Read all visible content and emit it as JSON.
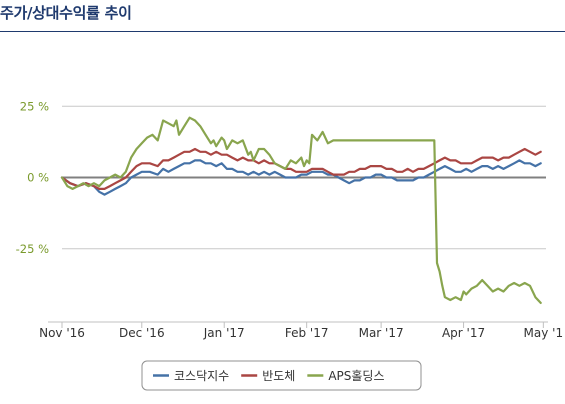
{
  "title": "주가/상대수익률 추이",
  "chart_data": {
    "type": "line",
    "title": "주가/상대수익률 추이",
    "xlabel": "",
    "ylabel": "",
    "ylim": [
      -50,
      30
    ],
    "y_ticks": [
      {
        "value": 25,
        "label": "25 %"
      },
      {
        "value": 0,
        "label": "0 %"
      },
      {
        "value": -25,
        "label": "-25 %"
      }
    ],
    "x_ticks": [
      "Nov '16",
      "Dec '16",
      "Jan '17",
      "Feb '17",
      "Mar '17",
      "Apr '17",
      "May '1"
    ],
    "x_tick_positions": [
      0,
      30,
      61,
      92,
      120,
      151,
      181
    ],
    "x_range": [
      0,
      182
    ],
    "grid": true,
    "legend_position": "bottom",
    "series": [
      {
        "name": "코스닥지수",
        "color": "#4572a7",
        "points": [
          [
            0,
            0
          ],
          [
            3,
            -2
          ],
          [
            6,
            -3
          ],
          [
            9,
            -2
          ],
          [
            12,
            -3
          ],
          [
            14,
            -5
          ],
          [
            16,
            -6
          ],
          [
            18,
            -5
          ],
          [
            20,
            -4
          ],
          [
            22,
            -3
          ],
          [
            24,
            -2
          ],
          [
            26,
            0
          ],
          [
            28,
            1
          ],
          [
            30,
            2
          ],
          [
            33,
            2
          ],
          [
            36,
            1
          ],
          [
            38,
            3
          ],
          [
            40,
            2
          ],
          [
            42,
            3
          ],
          [
            44,
            4
          ],
          [
            46,
            5
          ],
          [
            48,
            5
          ],
          [
            50,
            6
          ],
          [
            52,
            6
          ],
          [
            54,
            5
          ],
          [
            56,
            5
          ],
          [
            58,
            4
          ],
          [
            60,
            5
          ],
          [
            62,
            3
          ],
          [
            64,
            3
          ],
          [
            66,
            2
          ],
          [
            68,
            2
          ],
          [
            70,
            1
          ],
          [
            72,
            2
          ],
          [
            74,
            1
          ],
          [
            76,
            2
          ],
          [
            78,
            1
          ],
          [
            80,
            2
          ],
          [
            82,
            1
          ],
          [
            84,
            0
          ],
          [
            86,
            0
          ],
          [
            88,
            0
          ],
          [
            90,
            1
          ],
          [
            92,
            1
          ],
          [
            94,
            2
          ],
          [
            96,
            2
          ],
          [
            98,
            2
          ],
          [
            100,
            1
          ],
          [
            102,
            1
          ],
          [
            104,
            0
          ],
          [
            106,
            -1
          ],
          [
            108,
            -2
          ],
          [
            110,
            -1
          ],
          [
            112,
            -1
          ],
          [
            114,
            0
          ],
          [
            116,
            0
          ],
          [
            118,
            1
          ],
          [
            120,
            1
          ],
          [
            122,
            0
          ],
          [
            124,
            0
          ],
          [
            126,
            -1
          ],
          [
            128,
            -1
          ],
          [
            130,
            -1
          ],
          [
            132,
            -1
          ],
          [
            134,
            0
          ],
          [
            136,
            0
          ],
          [
            138,
            1
          ],
          [
            140,
            2
          ],
          [
            142,
            3
          ],
          [
            144,
            4
          ],
          [
            146,
            3
          ],
          [
            148,
            2
          ],
          [
            150,
            2
          ],
          [
            152,
            3
          ],
          [
            154,
            2
          ],
          [
            156,
            3
          ],
          [
            158,
            4
          ],
          [
            160,
            4
          ],
          [
            162,
            3
          ],
          [
            164,
            4
          ],
          [
            166,
            3
          ],
          [
            168,
            4
          ],
          [
            170,
            5
          ],
          [
            172,
            6
          ],
          [
            174,
            5
          ],
          [
            176,
            5
          ],
          [
            178,
            4
          ],
          [
            180,
            5
          ]
        ]
      },
      {
        "name": "반도체",
        "color": "#aa4643",
        "points": [
          [
            0,
            0
          ],
          [
            3,
            -2
          ],
          [
            6,
            -3
          ],
          [
            9,
            -2
          ],
          [
            12,
            -3
          ],
          [
            14,
            -4
          ],
          [
            16,
            -4
          ],
          [
            18,
            -3
          ],
          [
            20,
            -2
          ],
          [
            22,
            -1
          ],
          [
            24,
            0
          ],
          [
            26,
            2
          ],
          [
            28,
            4
          ],
          [
            30,
            5
          ],
          [
            33,
            5
          ],
          [
            36,
            4
          ],
          [
            38,
            6
          ],
          [
            40,
            6
          ],
          [
            42,
            7
          ],
          [
            44,
            8
          ],
          [
            46,
            9
          ],
          [
            48,
            9
          ],
          [
            50,
            10
          ],
          [
            52,
            9
          ],
          [
            54,
            9
          ],
          [
            56,
            8
          ],
          [
            58,
            9
          ],
          [
            60,
            8
          ],
          [
            62,
            8
          ],
          [
            64,
            7
          ],
          [
            66,
            6
          ],
          [
            68,
            7
          ],
          [
            70,
            6
          ],
          [
            72,
            6
          ],
          [
            74,
            5
          ],
          [
            76,
            6
          ],
          [
            78,
            5
          ],
          [
            80,
            5
          ],
          [
            82,
            4
          ],
          [
            84,
            3
          ],
          [
            86,
            3
          ],
          [
            88,
            2
          ],
          [
            90,
            2
          ],
          [
            92,
            2
          ],
          [
            94,
            3
          ],
          [
            96,
            3
          ],
          [
            98,
            3
          ],
          [
            100,
            2
          ],
          [
            102,
            1
          ],
          [
            104,
            1
          ],
          [
            106,
            1
          ],
          [
            108,
            2
          ],
          [
            110,
            2
          ],
          [
            112,
            3
          ],
          [
            114,
            3
          ],
          [
            116,
            4
          ],
          [
            118,
            4
          ],
          [
            120,
            4
          ],
          [
            122,
            3
          ],
          [
            124,
            3
          ],
          [
            126,
            2
          ],
          [
            128,
            2
          ],
          [
            130,
            3
          ],
          [
            132,
            2
          ],
          [
            134,
            3
          ],
          [
            136,
            3
          ],
          [
            138,
            4
          ],
          [
            140,
            5
          ],
          [
            142,
            6
          ],
          [
            144,
            7
          ],
          [
            146,
            6
          ],
          [
            148,
            6
          ],
          [
            150,
            5
          ],
          [
            152,
            5
          ],
          [
            154,
            5
          ],
          [
            156,
            6
          ],
          [
            158,
            7
          ],
          [
            160,
            7
          ],
          [
            162,
            7
          ],
          [
            164,
            6
          ],
          [
            166,
            7
          ],
          [
            168,
            7
          ],
          [
            170,
            8
          ],
          [
            172,
            9
          ],
          [
            174,
            10
          ],
          [
            176,
            9
          ],
          [
            178,
            8
          ],
          [
            180,
            9
          ]
        ]
      },
      {
        "name": "APS홀딩스",
        "color": "#89a54e",
        "points": [
          [
            0,
            0
          ],
          [
            2,
            -3
          ],
          [
            4,
            -4
          ],
          [
            6,
            -3
          ],
          [
            8,
            -2
          ],
          [
            10,
            -3
          ],
          [
            12,
            -2
          ],
          [
            14,
            -3
          ],
          [
            16,
            -1
          ],
          [
            18,
            0
          ],
          [
            20,
            1
          ],
          [
            22,
            0
          ],
          [
            24,
            2
          ],
          [
            26,
            7
          ],
          [
            28,
            10
          ],
          [
            30,
            12
          ],
          [
            32,
            14
          ],
          [
            34,
            15
          ],
          [
            36,
            13
          ],
          [
            38,
            20
          ],
          [
            40,
            19
          ],
          [
            42,
            18
          ],
          [
            43,
            20
          ],
          [
            44,
            15
          ],
          [
            46,
            18
          ],
          [
            48,
            21
          ],
          [
            50,
            20
          ],
          [
            52,
            18
          ],
          [
            54,
            15
          ],
          [
            56,
            12
          ],
          [
            57,
            13
          ],
          [
            58,
            11
          ],
          [
            60,
            14
          ],
          [
            61,
            13
          ],
          [
            62,
            10
          ],
          [
            64,
            13
          ],
          [
            66,
            12
          ],
          [
            68,
            13
          ],
          [
            70,
            8
          ],
          [
            71,
            9
          ],
          [
            72,
            6
          ],
          [
            74,
            10
          ],
          [
            76,
            10
          ],
          [
            78,
            8
          ],
          [
            80,
            5
          ],
          [
            82,
            4
          ],
          [
            84,
            3
          ],
          [
            86,
            6
          ],
          [
            88,
            5
          ],
          [
            90,
            7
          ],
          [
            91,
            4
          ],
          [
            92,
            6
          ],
          [
            93,
            5
          ],
          [
            94,
            15
          ],
          [
            96,
            13
          ],
          [
            98,
            16
          ],
          [
            100,
            12
          ],
          [
            102,
            13
          ],
          [
            104,
            13
          ],
          [
            110,
            13
          ],
          [
            120,
            13
          ],
          [
            130,
            13
          ],
          [
            140,
            13
          ],
          [
            141,
            -30
          ],
          [
            142,
            -33
          ],
          [
            143,
            -38
          ],
          [
            144,
            -42
          ],
          [
            146,
            -43
          ],
          [
            148,
            -42
          ],
          [
            150,
            -43
          ],
          [
            151,
            -40
          ],
          [
            152,
            -41
          ],
          [
            154,
            -39
          ],
          [
            156,
            -38
          ],
          [
            158,
            -36
          ],
          [
            160,
            -38
          ],
          [
            162,
            -40
          ],
          [
            164,
            -39
          ],
          [
            166,
            -40
          ],
          [
            168,
            -38
          ],
          [
            170,
            -37
          ],
          [
            172,
            -38
          ],
          [
            174,
            -37
          ],
          [
            176,
            -38
          ],
          [
            178,
            -42
          ],
          [
            180,
            -44
          ]
        ]
      }
    ]
  }
}
